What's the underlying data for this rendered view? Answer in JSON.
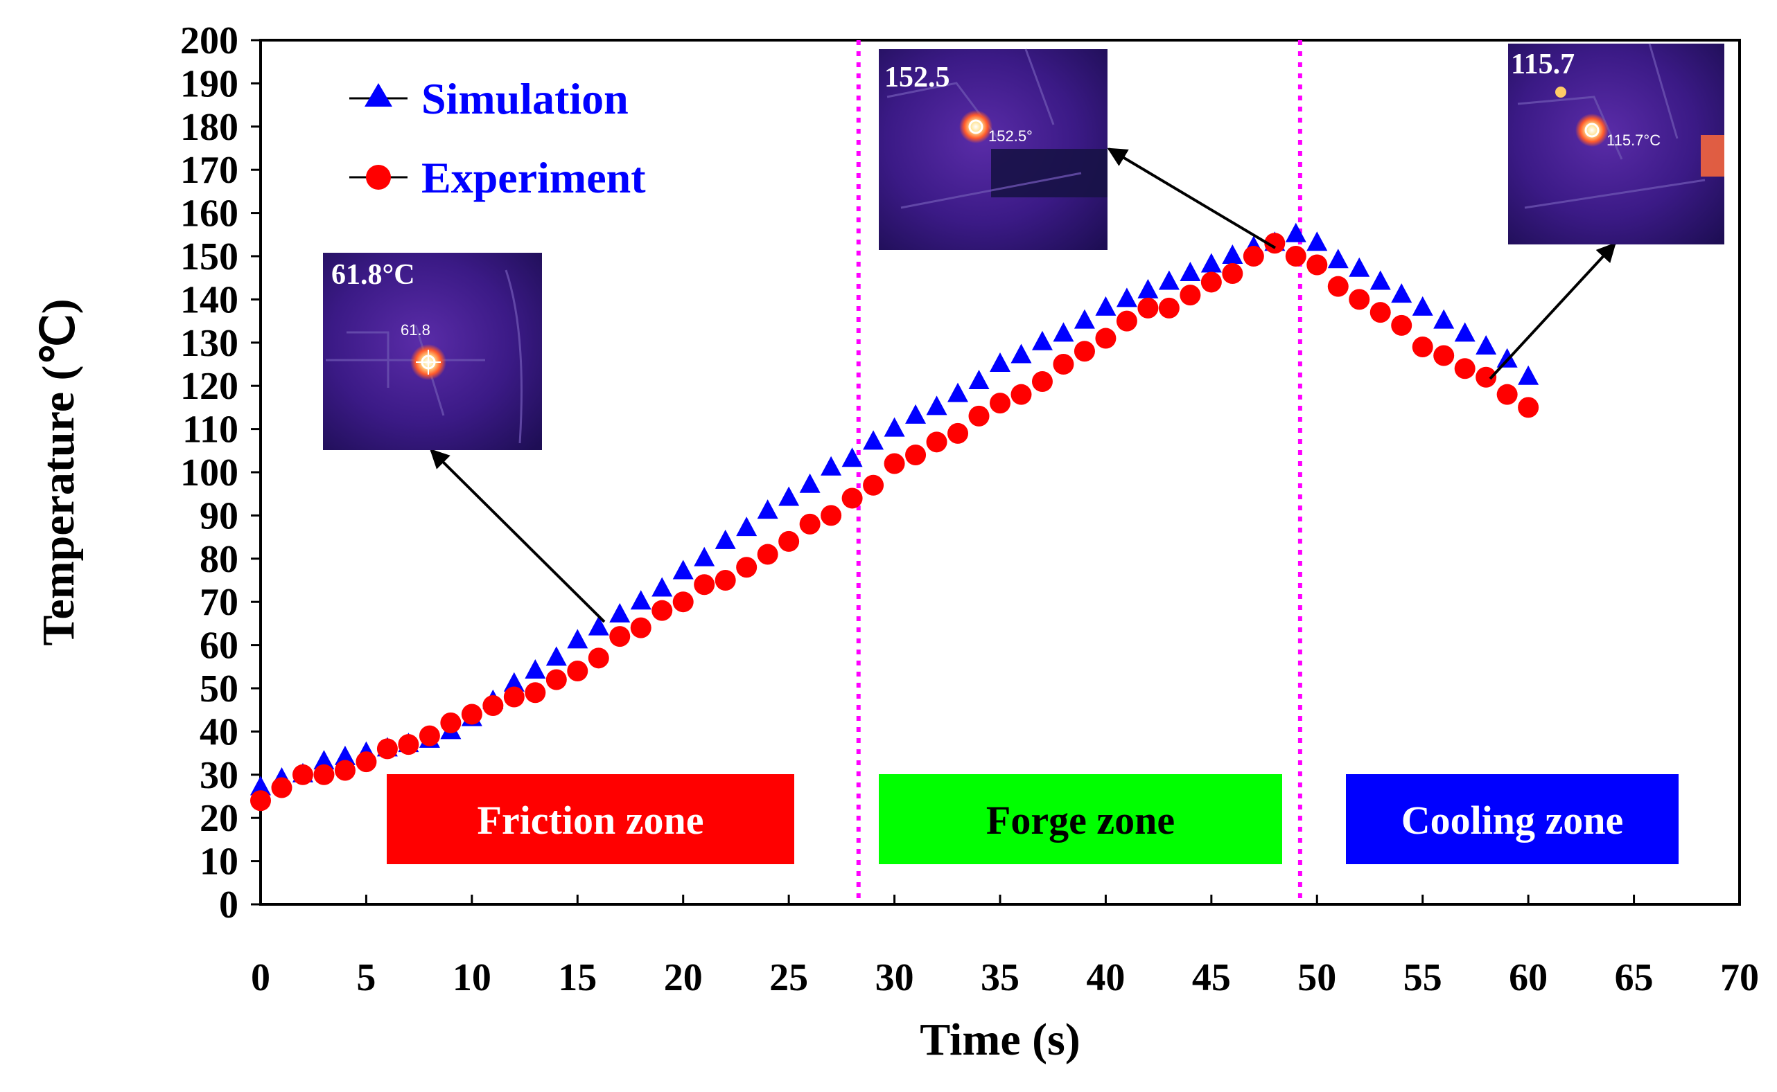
{
  "chart_data": {
    "type": "scatter",
    "title": "",
    "xlabel": "Time (s)",
    "ylabel": "Temperature (℃)",
    "xlim": [
      0,
      70
    ],
    "ylim": [
      0,
      200
    ],
    "xticks": [
      0,
      5,
      10,
      15,
      20,
      25,
      30,
      35,
      40,
      45,
      50,
      55,
      60,
      65,
      70
    ],
    "yticks": [
      0,
      10,
      20,
      30,
      40,
      50,
      60,
      70,
      80,
      90,
      100,
      110,
      120,
      130,
      140,
      150,
      160,
      170,
      180,
      190,
      200
    ],
    "grid": false,
    "legend_position": "top-left",
    "series": [
      {
        "name": "Simulation",
        "marker": "triangle",
        "color": "#0000ff",
        "x": [
          0,
          1,
          2,
          3,
          4,
          5,
          6,
          7,
          8,
          9,
          10,
          11,
          12,
          13,
          14,
          15,
          16,
          17,
          18,
          19,
          20,
          21,
          22,
          23,
          24,
          25,
          26,
          27,
          28,
          29,
          30,
          31,
          32,
          33,
          34,
          35,
          36,
          37,
          38,
          39,
          40,
          41,
          42,
          43,
          44,
          45,
          46,
          47,
          48,
          49,
          50,
          51,
          52,
          53,
          54,
          55,
          56,
          57,
          58,
          59,
          60
        ],
        "y": [
          27,
          29,
          30,
          33,
          34,
          35,
          36,
          37,
          38,
          40,
          43,
          47,
          51,
          54,
          57,
          61,
          64,
          67,
          70,
          73,
          77,
          80,
          84,
          87,
          91,
          94,
          97,
          101,
          103,
          107,
          110,
          113,
          115,
          118,
          121,
          125,
          127,
          130,
          132,
          135,
          138,
          140,
          142,
          144,
          146,
          148,
          150,
          152,
          153,
          155,
          153,
          149,
          147,
          144,
          141,
          138,
          135,
          132,
          129,
          126,
          122
        ]
      },
      {
        "name": "Experiment",
        "marker": "circle",
        "color": "#ff0000",
        "x": [
          0,
          1,
          2,
          3,
          4,
          5,
          6,
          7,
          8,
          9,
          10,
          11,
          12,
          13,
          14,
          15,
          16,
          17,
          18,
          19,
          20,
          21,
          22,
          23,
          24,
          25,
          26,
          27,
          28,
          29,
          30,
          31,
          32,
          33,
          34,
          35,
          36,
          37,
          38,
          39,
          40,
          41,
          42,
          43,
          44,
          45,
          46,
          47,
          48,
          49,
          50,
          51,
          52,
          53,
          54,
          55,
          56,
          57,
          58,
          59,
          60
        ],
        "y": [
          24,
          27,
          30,
          30,
          31,
          33,
          36,
          37,
          39,
          42,
          44,
          46,
          48,
          49,
          52,
          54,
          57,
          62,
          64,
          68,
          70,
          74,
          75,
          78,
          81,
          84,
          88,
          90,
          94,
          97,
          102,
          104,
          107,
          109,
          113,
          116,
          118,
          121,
          125,
          128,
          131,
          135,
          138,
          138,
          141,
          144,
          146,
          150,
          153,
          150,
          148,
          143,
          140,
          137,
          134,
          129,
          127,
          124,
          122,
          118,
          115
        ]
      }
    ],
    "zones": [
      {
        "label": "Friction zone",
        "color": "#ff0000",
        "text_color": "#ffffff"
      },
      {
        "label": "Forge zone",
        "color": "#00ff00",
        "text_color": "#000000"
      },
      {
        "label": "Cooling zone",
        "color": "#0000ff",
        "text_color": "#ffffff"
      }
    ],
    "dividers": [
      {
        "x": 28.3,
        "color": "#ff00ff"
      },
      {
        "x": 49.2,
        "color": "#ff00ff"
      }
    ],
    "insets": [
      {
        "big_label": "61.8°C",
        "small_label": "61.8"
      },
      {
        "big_label": "152.5",
        "small_label": "152.5°"
      },
      {
        "big_label": "115.7",
        "small_label": "115.7°C"
      }
    ]
  }
}
